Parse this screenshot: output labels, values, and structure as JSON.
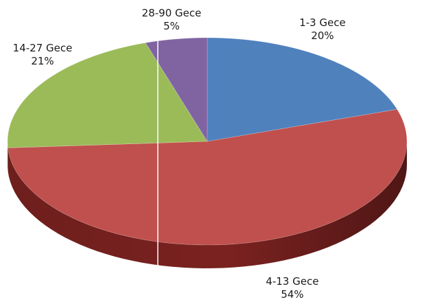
{
  "chart_data": {
    "type": "pie",
    "style": "3d",
    "categories": [
      "1-3 Gece",
      "4-13 Gece",
      "14-27 Gece",
      "28-90 Gece"
    ],
    "values": [
      20,
      54,
      21,
      5
    ],
    "value_labels": [
      "20%",
      "54%",
      "21%",
      "5%"
    ],
    "colors": [
      "#4f81bd",
      "#c0504d",
      "#9bbb59",
      "#8064a2"
    ],
    "side_colors": [
      "#2c4d75",
      "#7a2220",
      "#5f7530",
      "#4d3b62"
    ],
    "title": "",
    "legend": "none"
  }
}
